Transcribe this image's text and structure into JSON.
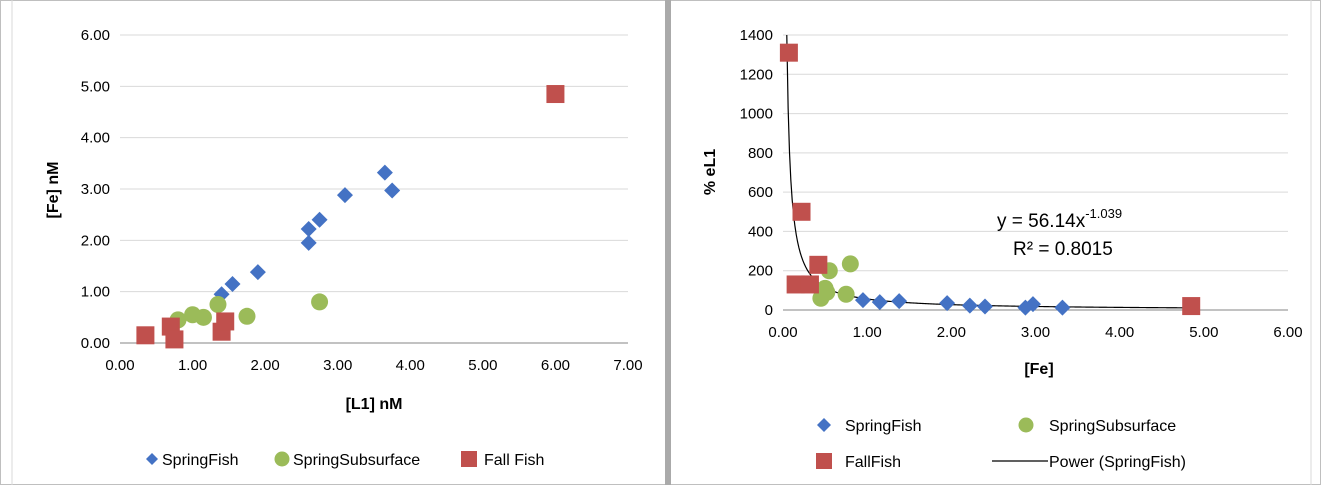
{
  "chart_data": [
    {
      "type": "scatter",
      "title": "",
      "xlabel": "[L1] nM",
      "ylabel": "[Fe] nM",
      "xlim": [
        0,
        7
      ],
      "ylim": [
        0,
        6
      ],
      "x_ticks": [
        "0.00",
        "1.00",
        "2.00",
        "3.00",
        "4.00",
        "5.00",
        "6.00",
        "7.00"
      ],
      "y_ticks": [
        "0.00",
        "1.00",
        "2.00",
        "3.00",
        "4.00",
        "5.00",
        "6.00"
      ],
      "grid": "horizontal",
      "legend_position": "bottom",
      "series": [
        {
          "name": "SpringFish",
          "marker": "diamond",
          "color": "#4472c4",
          "points": [
            [
              1.4,
              0.95
            ],
            [
              1.55,
              1.15
            ],
            [
              1.9,
              1.38
            ],
            [
              2.6,
              1.95
            ],
            [
              2.6,
              2.22
            ],
            [
              2.75,
              2.4
            ],
            [
              3.1,
              2.88
            ],
            [
              3.65,
              3.32
            ],
            [
              3.75,
              2.97
            ]
          ]
        },
        {
          "name": "SpringSubsurface",
          "marker": "circle",
          "color": "#9bbb59",
          "points": [
            [
              0.8,
              0.45
            ],
            [
              1.0,
              0.55
            ],
            [
              1.15,
              0.5
            ],
            [
              1.35,
              0.75
            ],
            [
              1.75,
              0.52
            ],
            [
              2.75,
              0.8
            ]
          ]
        },
        {
          "name": "Fall Fish",
          "marker": "square",
          "color": "#c0504d",
          "points": [
            [
              0.35,
              0.15
            ],
            [
              0.7,
              0.32
            ],
            [
              0.75,
              0.07
            ],
            [
              1.4,
              0.22
            ],
            [
              1.45,
              0.42
            ],
            [
              6.0,
              4.85
            ]
          ]
        }
      ]
    },
    {
      "type": "scatter",
      "title": "",
      "xlabel": "[Fe]",
      "ylabel": "% eL1",
      "xlim": [
        0,
        6
      ],
      "ylim": [
        0,
        1400
      ],
      "x_ticks": [
        "0.00",
        "1.00",
        "2.00",
        "3.00",
        "4.00",
        "5.00",
        "6.00"
      ],
      "y_ticks": [
        "0",
        "200",
        "400",
        "600",
        "800",
        "1000",
        "1200",
        "1400"
      ],
      "grid": "horizontal",
      "legend_position": "bottom",
      "annotation": {
        "equation_prefix": "y = 56.14x",
        "equation_exponent": "-1.039",
        "r_squared": "R² = 0.8015"
      },
      "trendline": {
        "name": "Power (SpringFish)",
        "type": "power",
        "a": 56.14,
        "b": -1.039,
        "color": "#000000"
      },
      "series": [
        {
          "name": "SpringFish",
          "marker": "diamond",
          "color": "#4472c4",
          "points": [
            [
              0.95,
              50
            ],
            [
              1.15,
              40
            ],
            [
              1.38,
              45
            ],
            [
              1.95,
              35
            ],
            [
              2.22,
              22
            ],
            [
              2.4,
              18
            ],
            [
              2.88,
              12
            ],
            [
              2.97,
              30
            ],
            [
              3.32,
              12
            ]
          ]
        },
        {
          "name": "SpringSubsurface",
          "marker": "circle",
          "color": "#9bbb59",
          "points": [
            [
              0.45,
              60
            ],
            [
              0.5,
              110
            ],
            [
              0.52,
              90
            ],
            [
              0.55,
              200
            ],
            [
              0.75,
              80
            ],
            [
              0.8,
              235
            ]
          ]
        },
        {
          "name": "FallFish",
          "marker": "square",
          "color": "#c0504d",
          "points": [
            [
              0.07,
              1310
            ],
            [
              0.15,
              130
            ],
            [
              0.22,
              500
            ],
            [
              0.32,
              130
            ],
            [
              0.42,
              230
            ],
            [
              4.85,
              20
            ]
          ]
        }
      ]
    }
  ]
}
